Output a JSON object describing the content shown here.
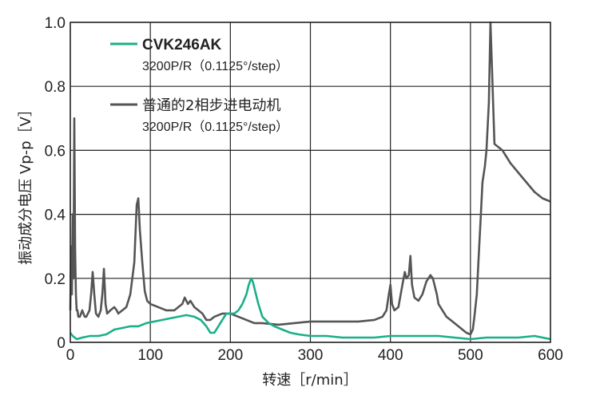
{
  "chart_data": {
    "type": "line",
    "title": "",
    "xlabel": "转速［r/min］",
    "ylabel": "振动成分电压 Vp-p［V］",
    "xlim": [
      0,
      600
    ],
    "ylim": [
      0,
      1.0
    ],
    "xticks": [
      "0",
      "100",
      "200",
      "300",
      "400",
      "500",
      "600"
    ],
    "yticks": [
      "0",
      "0.2",
      "0.4",
      "0.6",
      "0.8",
      "1.0"
    ],
    "grid": true,
    "legend_position": "top-left",
    "series": [
      {
        "name": "CVK246AK",
        "subtitle": "3200P/R（0.1125°/step）",
        "color": "#1aaf8a",
        "x": [
          0,
          3,
          8,
          15,
          25,
          35,
          45,
          55,
          65,
          75,
          85,
          95,
          105,
          115,
          125,
          135,
          145,
          155,
          163,
          170,
          175,
          180,
          185,
          190,
          195,
          200,
          205,
          210,
          215,
          220,
          223,
          226,
          228,
          231,
          235,
          240,
          248,
          255,
          265,
          275,
          285,
          300,
          320,
          340,
          360,
          380,
          400,
          420,
          440,
          460,
          480,
          500,
          520,
          540,
          560,
          580,
          590,
          600
        ],
        "y": [
          0.03,
          0.02,
          0.01,
          0.015,
          0.02,
          0.02,
          0.025,
          0.04,
          0.045,
          0.05,
          0.05,
          0.06,
          0.065,
          0.07,
          0.075,
          0.08,
          0.085,
          0.08,
          0.07,
          0.05,
          0.03,
          0.03,
          0.05,
          0.07,
          0.09,
          0.09,
          0.09,
          0.1,
          0.12,
          0.15,
          0.18,
          0.2,
          0.19,
          0.16,
          0.12,
          0.08,
          0.06,
          0.05,
          0.04,
          0.03,
          0.025,
          0.02,
          0.02,
          0.015,
          0.015,
          0.015,
          0.02,
          0.02,
          0.02,
          0.02,
          0.015,
          0.01,
          0.015,
          0.015,
          0.015,
          0.02,
          0.015,
          0.01
        ]
      },
      {
        "name": "普通的2相步进电动机",
        "subtitle": "3200P/R（0.1125°/step）",
        "color": "#555555",
        "x": [
          0,
          1,
          2,
          3,
          4,
          5,
          6,
          7,
          8,
          9,
          10,
          12,
          15,
          18,
          20,
          22,
          24,
          26,
          28,
          30,
          32,
          35,
          38,
          40,
          42,
          44,
          46,
          50,
          55,
          58,
          60,
          65,
          70,
          75,
          80,
          83,
          85,
          87,
          90,
          93,
          96,
          100,
          110,
          120,
          130,
          140,
          143,
          147,
          150,
          155,
          160,
          165,
          170,
          175,
          180,
          190,
          200,
          210,
          220,
          230,
          240,
          260,
          280,
          300,
          320,
          340,
          360,
          380,
          390,
          395,
          398,
          400,
          402,
          405,
          410,
          415,
          418,
          420,
          423,
          425,
          427,
          430,
          435,
          440,
          445,
          450,
          453,
          455,
          458,
          460,
          465,
          470,
          475,
          480,
          485,
          490,
          495,
          500,
          503,
          505,
          508,
          510,
          513,
          515,
          518,
          520,
          523,
          525,
          527,
          530,
          540,
          550,
          560,
          570,
          580,
          590,
          600
        ],
        "y": [
          0.1,
          0.3,
          0.15,
          0.4,
          0.2,
          0.7,
          0.3,
          0.15,
          0.1,
          0.1,
          0.08,
          0.08,
          0.1,
          0.08,
          0.08,
          0.09,
          0.1,
          0.15,
          0.22,
          0.15,
          0.09,
          0.08,
          0.1,
          0.15,
          0.23,
          0.12,
          0.09,
          0.1,
          0.11,
          0.1,
          0.09,
          0.1,
          0.11,
          0.15,
          0.25,
          0.43,
          0.45,
          0.35,
          0.25,
          0.16,
          0.13,
          0.12,
          0.11,
          0.1,
          0.1,
          0.12,
          0.14,
          0.12,
          0.13,
          0.11,
          0.1,
          0.09,
          0.07,
          0.07,
          0.08,
          0.09,
          0.09,
          0.08,
          0.07,
          0.06,
          0.06,
          0.055,
          0.06,
          0.065,
          0.065,
          0.065,
          0.065,
          0.07,
          0.08,
          0.1,
          0.15,
          0.18,
          0.12,
          0.1,
          0.11,
          0.18,
          0.22,
          0.2,
          0.21,
          0.27,
          0.18,
          0.14,
          0.13,
          0.15,
          0.19,
          0.21,
          0.2,
          0.18,
          0.15,
          0.12,
          0.1,
          0.08,
          0.07,
          0.06,
          0.05,
          0.04,
          0.03,
          0.025,
          0.04,
          0.08,
          0.15,
          0.25,
          0.4,
          0.5,
          0.55,
          0.6,
          0.75,
          1.0,
          0.85,
          0.62,
          0.6,
          0.56,
          0.53,
          0.5,
          0.47,
          0.45,
          0.44
        ]
      }
    ]
  }
}
